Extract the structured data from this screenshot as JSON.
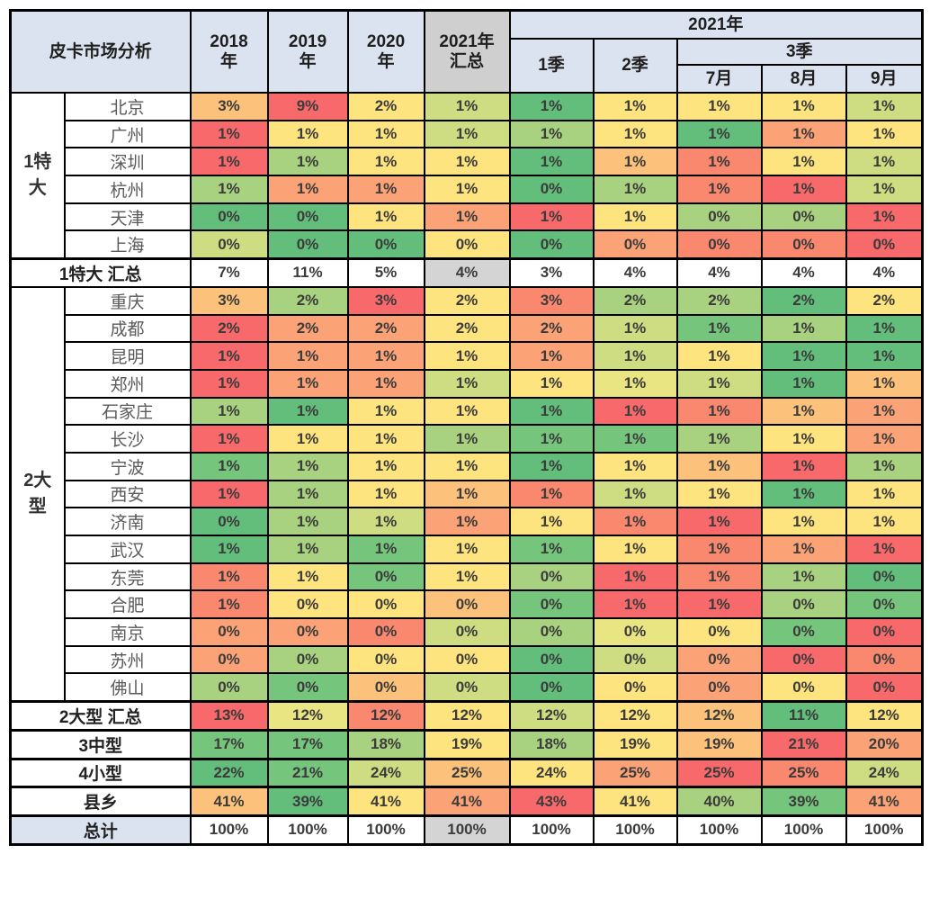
{
  "palette": {
    "r": "#f8696b",
    "s": "#f9886f",
    "o": "#fba377",
    "yo": "#fcc27b",
    "y": "#fde47f",
    "pg": "#e9e583",
    "yg": "#cedc82",
    "lg": "#a8d27f",
    "mg": "#76c57c",
    "g": "#63be7b",
    "w": "#ffffff",
    "gy": "#d4d4d4",
    "header_blue": "#dce3f0",
    "header_gray": "#d0cfcf",
    "border": "#000000"
  },
  "header": {
    "title": "皮卡市场分析",
    "y2018": "2018\n年",
    "y2019": "2019\n年",
    "y2020": "2020\n年",
    "y2021_total": "2021年\n汇总",
    "y2021": "2021年",
    "q1": "1季",
    "q2": "2季",
    "q3": "3季",
    "m7": "7月",
    "m8": "8月",
    "m9": "9月"
  },
  "chart_data": {
    "type": "heatmap",
    "title": "皮卡市场分析",
    "unit": "percent share",
    "columns": [
      "2018年",
      "2019年",
      "2020年",
      "2021年汇总",
      "2021年1季",
      "2021年2季",
      "2021年7月",
      "2021年8月",
      "2021年9月"
    ],
    "rows": [
      {
        "type": "city",
        "group_name": "1特大",
        "group_display": "1特\n大",
        "group_span": 6,
        "label": "北京",
        "values": [
          "3%",
          "9%",
          "2%",
          "1%",
          "1%",
          "1%",
          "1%",
          "1%",
          "1%"
        ],
        "colors": [
          "yo",
          "r",
          "y",
          "yg",
          "g",
          "y",
          "y",
          "y",
          "yg"
        ]
      },
      {
        "type": "city",
        "label": "广州",
        "values": [
          "1%",
          "1%",
          "1%",
          "1%",
          "1%",
          "1%",
          "1%",
          "1%",
          "1%"
        ],
        "colors": [
          "r",
          "y",
          "y",
          "yg",
          "lg",
          "y",
          "g",
          "o",
          "y"
        ]
      },
      {
        "type": "city",
        "label": "深圳",
        "values": [
          "1%",
          "1%",
          "1%",
          "1%",
          "1%",
          "1%",
          "1%",
          "1%",
          "1%"
        ],
        "colors": [
          "r",
          "lg",
          "y",
          "y",
          "g",
          "yo",
          "s",
          "y",
          "yg"
        ]
      },
      {
        "type": "city",
        "label": "杭州",
        "values": [
          "1%",
          "1%",
          "1%",
          "1%",
          "0%",
          "1%",
          "1%",
          "1%",
          "1%"
        ],
        "colors": [
          "lg",
          "o",
          "o",
          "y",
          "g",
          "lg",
          "s",
          "r",
          "yg"
        ]
      },
      {
        "type": "city",
        "label": "天津",
        "values": [
          "0%",
          "0%",
          "1%",
          "1%",
          "1%",
          "1%",
          "0%",
          "0%",
          "1%"
        ],
        "colors": [
          "g",
          "g",
          "y",
          "o",
          "r",
          "y",
          "lg",
          "lg",
          "r"
        ]
      },
      {
        "type": "city",
        "label": "上海",
        "values": [
          "0%",
          "0%",
          "0%",
          "0%",
          "0%",
          "0%",
          "0%",
          "0%",
          "0%"
        ],
        "colors": [
          "yg",
          "g",
          "g",
          "y",
          "g",
          "o",
          "s",
          "s",
          "r"
        ]
      },
      {
        "type": "summary",
        "label": "1特大 汇总",
        "values": [
          "7%",
          "11%",
          "5%",
          "4%",
          "3%",
          "4%",
          "4%",
          "4%",
          "4%"
        ],
        "colors": [
          "w",
          "w",
          "w",
          "gy",
          "w",
          "w",
          "w",
          "w",
          "w"
        ]
      },
      {
        "type": "city",
        "group_name": "2大型",
        "group_display": "2大\n型",
        "group_span": 15,
        "label": "重庆",
        "values": [
          "3%",
          "2%",
          "3%",
          "2%",
          "3%",
          "2%",
          "2%",
          "2%",
          "2%"
        ],
        "colors": [
          "yo",
          "lg",
          "r",
          "y",
          "s",
          "lg",
          "lg",
          "g",
          "y"
        ]
      },
      {
        "type": "city",
        "label": "成都",
        "values": [
          "2%",
          "2%",
          "2%",
          "2%",
          "2%",
          "1%",
          "1%",
          "1%",
          "1%"
        ],
        "colors": [
          "r",
          "o",
          "o",
          "y",
          "o",
          "yg",
          "mg",
          "lg",
          "g"
        ]
      },
      {
        "type": "city",
        "label": "昆明",
        "values": [
          "1%",
          "1%",
          "1%",
          "1%",
          "1%",
          "1%",
          "1%",
          "1%",
          "1%"
        ],
        "colors": [
          "r",
          "o",
          "o",
          "y",
          "o",
          "yg",
          "y",
          "g",
          "g"
        ]
      },
      {
        "type": "city",
        "label": "郑州",
        "values": [
          "1%",
          "1%",
          "1%",
          "1%",
          "1%",
          "1%",
          "1%",
          "1%",
          "1%"
        ],
        "colors": [
          "r",
          "o",
          "o",
          "yg",
          "y",
          "pg",
          "yg",
          "g",
          "yo"
        ]
      },
      {
        "type": "city",
        "label": "石家庄",
        "values": [
          "1%",
          "1%",
          "1%",
          "1%",
          "1%",
          "1%",
          "1%",
          "1%",
          "1%"
        ],
        "colors": [
          "lg",
          "g",
          "y",
          "y",
          "g",
          "r",
          "s",
          "yo",
          "o"
        ]
      },
      {
        "type": "city",
        "label": "长沙",
        "values": [
          "1%",
          "1%",
          "1%",
          "1%",
          "1%",
          "1%",
          "1%",
          "1%",
          "1%"
        ],
        "colors": [
          "r",
          "y",
          "y",
          "lg",
          "mg",
          "mg",
          "lg",
          "y",
          "o"
        ]
      },
      {
        "type": "city",
        "label": "宁波",
        "values": [
          "1%",
          "1%",
          "1%",
          "1%",
          "1%",
          "1%",
          "1%",
          "1%",
          "1%"
        ],
        "colors": [
          "mg",
          "lg",
          "y",
          "y",
          "g",
          "y",
          "yo",
          "r",
          "lg"
        ]
      },
      {
        "type": "city",
        "label": "西安",
        "values": [
          "1%",
          "1%",
          "1%",
          "1%",
          "1%",
          "1%",
          "1%",
          "1%",
          "1%"
        ],
        "colors": [
          "r",
          "lg",
          "y",
          "yo",
          "s",
          "yg",
          "y",
          "g",
          "y"
        ]
      },
      {
        "type": "city",
        "label": "济南",
        "values": [
          "0%",
          "1%",
          "1%",
          "1%",
          "1%",
          "1%",
          "1%",
          "1%",
          "1%"
        ],
        "colors": [
          "g",
          "lg",
          "yg",
          "o",
          "y",
          "s",
          "r",
          "y",
          "y"
        ]
      },
      {
        "type": "city",
        "label": "武汉",
        "values": [
          "1%",
          "1%",
          "1%",
          "1%",
          "1%",
          "1%",
          "1%",
          "1%",
          "1%"
        ],
        "colors": [
          "g",
          "lg",
          "mg",
          "y",
          "mg",
          "y",
          "s",
          "o",
          "r"
        ]
      },
      {
        "type": "city",
        "label": "东莞",
        "values": [
          "1%",
          "1%",
          "0%",
          "1%",
          "0%",
          "1%",
          "1%",
          "1%",
          "0%"
        ],
        "colors": [
          "s",
          "y",
          "mg",
          "y",
          "lg",
          "r",
          "s",
          "lg",
          "g"
        ]
      },
      {
        "type": "city",
        "label": "合肥",
        "values": [
          "1%",
          "0%",
          "0%",
          "0%",
          "0%",
          "1%",
          "1%",
          "0%",
          "0%"
        ],
        "colors": [
          "s",
          "y",
          "y",
          "yo",
          "mg",
          "r",
          "r",
          "lg",
          "mg"
        ]
      },
      {
        "type": "city",
        "label": "南京",
        "values": [
          "0%",
          "0%",
          "0%",
          "0%",
          "0%",
          "0%",
          "0%",
          "0%",
          "0%"
        ],
        "colors": [
          "o",
          "o",
          "s",
          "yg",
          "lg",
          "pg",
          "y",
          "mg",
          "r"
        ]
      },
      {
        "type": "city",
        "label": "苏州",
        "values": [
          "0%",
          "0%",
          "0%",
          "0%",
          "0%",
          "0%",
          "0%",
          "0%",
          "0%"
        ],
        "colors": [
          "o",
          "lg",
          "y",
          "y",
          "g",
          "yg",
          "o",
          "r",
          "s"
        ]
      },
      {
        "type": "city",
        "label": "佛山",
        "values": [
          "0%",
          "0%",
          "0%",
          "0%",
          "0%",
          "0%",
          "0%",
          "0%",
          "0%"
        ],
        "colors": [
          "lg",
          "mg",
          "yo",
          "yg",
          "g",
          "y",
          "o",
          "y",
          "r"
        ]
      },
      {
        "type": "summary",
        "label": "2大型 汇总",
        "values": [
          "13%",
          "12%",
          "12%",
          "12%",
          "12%",
          "12%",
          "12%",
          "11%",
          "12%"
        ],
        "colors": [
          "r",
          "pg",
          "s",
          "y",
          "yg",
          "y",
          "yo",
          "g",
          "y"
        ]
      },
      {
        "type": "summary",
        "label": "3中型",
        "values": [
          "17%",
          "17%",
          "18%",
          "19%",
          "18%",
          "19%",
          "19%",
          "21%",
          "20%"
        ],
        "colors": [
          "mg",
          "mg",
          "lg",
          "y",
          "lg",
          "y",
          "yo",
          "r",
          "o"
        ]
      },
      {
        "type": "summary",
        "label": "4小型",
        "values": [
          "22%",
          "21%",
          "24%",
          "25%",
          "24%",
          "25%",
          "25%",
          "25%",
          "24%"
        ],
        "colors": [
          "g",
          "mg",
          "yg",
          "yo",
          "y",
          "o",
          "r",
          "s",
          "yg"
        ]
      },
      {
        "type": "summary",
        "label": "县乡",
        "values": [
          "41%",
          "39%",
          "41%",
          "41%",
          "43%",
          "41%",
          "40%",
          "39%",
          "41%"
        ],
        "colors": [
          "yo",
          "g",
          "y",
          "o",
          "r",
          "y",
          "lg",
          "mg",
          "o"
        ]
      },
      {
        "type": "total",
        "label": "总计",
        "values": [
          "100%",
          "100%",
          "100%",
          "100%",
          "100%",
          "100%",
          "100%",
          "100%",
          "100%"
        ],
        "colors": [
          "w",
          "w",
          "w",
          "gy",
          "w",
          "w",
          "w",
          "w",
          "w"
        ]
      }
    ]
  }
}
